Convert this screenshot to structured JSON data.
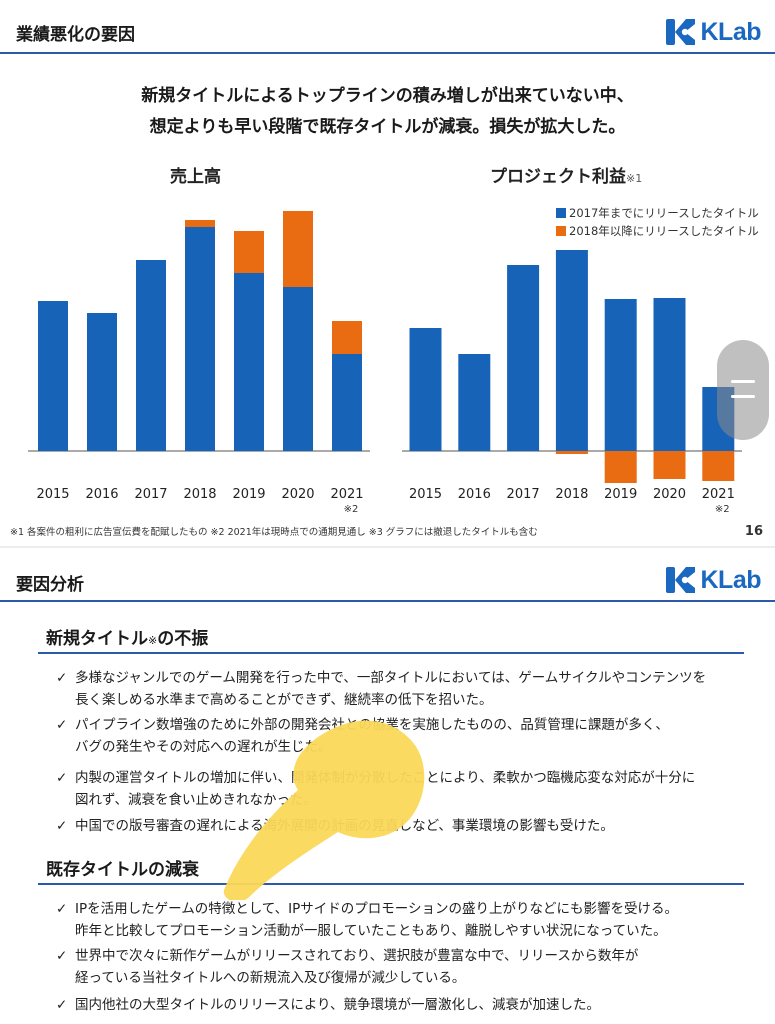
{
  "slide1": {
    "title": "業績悪化の要因",
    "logo": "KLab",
    "headline_line1": "新規タイトルによるトップラインの積み増しが出来ていない中、",
    "headline_line2": "想定よりも早い段階で既存タイトルが減衰。損失が拡大した。",
    "footnote": "※1 各案件の粗利に広告宣伝費を配賦したもの ※2 2021年は現時点での通期見通し ※3 グラフには撤退したタイトルも含む",
    "page_number": "16",
    "legend": [
      "2017年までにリリースしたタイトル",
      "2018年以降にリリースしたタイトル"
    ],
    "colors": {
      "blue": "#1763b8",
      "orange": "#ea6c12",
      "accent_line": "#2c5aa8"
    }
  },
  "chart_data": [
    {
      "type": "bar",
      "stacked": true,
      "title": "売上高",
      "categories": [
        "2015",
        "2016",
        "2017",
        "2018",
        "2019",
        "2020",
        "2021"
      ],
      "category_notes": [
        "",
        "",
        "",
        "",
        "",
        "",
        "※2"
      ],
      "series": [
        {
          "name": "2017年までにリリースしたタイトル",
          "values": [
            150,
            138,
            191,
            224,
            178,
            164,
            97
          ]
        },
        {
          "name": "2018年以降にリリースしたタイトル",
          "values": [
            0,
            0,
            0,
            7,
            42,
            76,
            33
          ]
        }
      ],
      "ylim": [
        0,
        240
      ],
      "axis_labels_shown": false
    },
    {
      "type": "bar",
      "stacked": true,
      "title": "プロジェクト利益",
      "title_note": "※1",
      "categories": [
        "2015",
        "2016",
        "2017",
        "2018",
        "2019",
        "2020",
        "2021"
      ],
      "category_notes": [
        "",
        "",
        "",
        "",
        "",
        "",
        "※2"
      ],
      "series": [
        {
          "name": "2017年までにリリースしたタイトル",
          "values": [
            123,
            97,
            186,
            201,
            152,
            153,
            64
          ]
        },
        {
          "name": "2018年以降にリリースしたタイトル",
          "values": [
            0,
            0,
            0,
            -3,
            -32,
            -28,
            -30
          ]
        }
      ],
      "ylim": [
        -50,
        220
      ],
      "axis_labels_shown": false
    }
  ],
  "slide2": {
    "title": "要因分析",
    "logo": "KLab",
    "section1_title": "新規タイトル",
    "section1_note": "※",
    "section1_suffix": "の不振",
    "section1_items": [
      {
        "line1": "多様なジャンルでのゲーム開発を行った中で、一部タイトルにおいては、ゲームサイクルやコンテンツを",
        "line2": "長く楽しめる水準まで高めることができず、継続率の低下を招いた。"
      },
      {
        "line1": "パイプライン数増強のために外部の開発会社との協業を実施したものの、品質管理に課題が多く、",
        "line2": "バグの発生やその対応への遅れが生じた。"
      },
      {
        "line1": "内製の運営タイトルの増加に伴い、開発体制が分散したことにより、柔軟かつ臨機応変な対応が十分に",
        "line2": "図れず、減衰を食い止めきれなかった。"
      },
      {
        "line1": "中国での版号審査の遅れによる海外展開の計画の見直しなど、事業環境の影響も受けた。",
        "line2": ""
      }
    ],
    "section2_title": "既存タイトルの減衰",
    "section2_items": [
      {
        "line1": "IPを活用したゲームの特徴として、IPサイドのプロモーションの盛り上がりなどにも影響を受ける。",
        "line2": "昨年と比較してプロモーション活動が一服していたこともあり、離脱しやすい状況になっていた。"
      },
      {
        "line1": "世界中で次々に新作ゲームがリリースされており、選択肢が豊富な中で、リリースから数年が",
        "line2": "経っている当社タイトルへの新規流入及び復帰が減少している。"
      },
      {
        "line1": "国内他社の大型タイトルのリリースにより、競争環境が一層激化し、減衰が加速した。",
        "line2": ""
      }
    ],
    "check_glyph": "✓"
  },
  "overlay": {
    "scroll_handle_icon": "drag-handle-icon",
    "finger_icon": "pointing-finger-icon"
  }
}
